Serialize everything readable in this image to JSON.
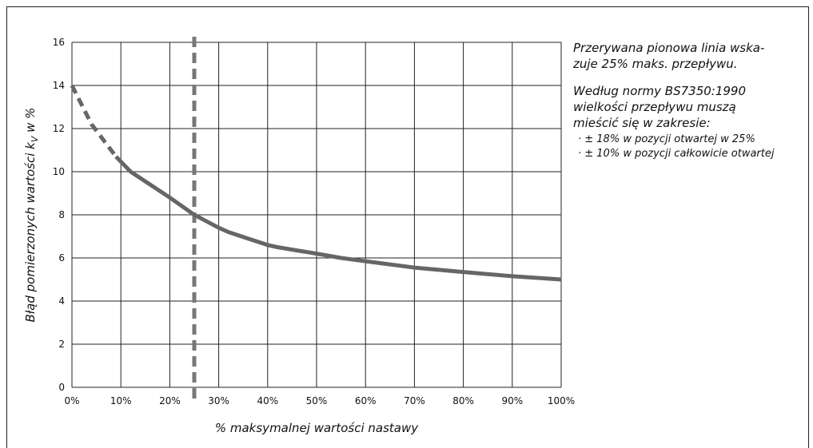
{
  "chart_data": {
    "type": "line",
    "xlabel": "% maksymalnej wartości nastawy",
    "ylabel_prefix": "Błąd pomierzonych wartości k",
    "ylabel_sub": "V",
    "ylabel_suffix": " w %",
    "xlim": [
      0,
      100
    ],
    "ylim": [
      0,
      16
    ],
    "x_ticks": [
      "0%",
      "10%",
      "20%",
      "30%",
      "40%",
      "50%",
      "60%",
      "70%",
      "80%",
      "90%",
      "100%"
    ],
    "x_tick_values": [
      0,
      10,
      20,
      30,
      40,
      50,
      60,
      70,
      80,
      90,
      100
    ],
    "y_ticks": [
      "0",
      "2",
      "4",
      "6",
      "8",
      "10",
      "12",
      "14",
      "16"
    ],
    "y_tick_values": [
      0,
      2,
      4,
      6,
      8,
      10,
      12,
      14,
      16
    ],
    "grid": true,
    "series": [
      {
        "style": "dashed",
        "x": [
          0,
          4,
          9
        ],
        "y": [
          14.0,
          12.2,
          10.7
        ]
      },
      {
        "style": "solid",
        "x": [
          9,
          12,
          16,
          20,
          25,
          30,
          32,
          36,
          40,
          42,
          46,
          50,
          55,
          60,
          70,
          80,
          90,
          100
        ],
        "y": [
          10.7,
          10.0,
          9.4,
          8.8,
          8.0,
          7.4,
          7.2,
          6.9,
          6.6,
          6.5,
          6.35,
          6.2,
          6.0,
          5.85,
          5.55,
          5.35,
          5.15,
          5.0
        ]
      }
    ],
    "vline": {
      "x": 25,
      "style": "dashed"
    },
    "colors": {
      "curve": "#666666",
      "vline": "#777777",
      "grid": "#222222"
    }
  },
  "notes": {
    "p1": "Przerywana pionowa linia wska-\nzuje 25% maks. przepływu.",
    "p2": "Według normy BS7350:1990\nwielkości przepływu muszą\nmieścić się w zakresie:",
    "b1": "· ± 18% w pozycji otwartej w 25%",
    "b2": "· ± 10% w pozycji całkowicie otwartej"
  }
}
